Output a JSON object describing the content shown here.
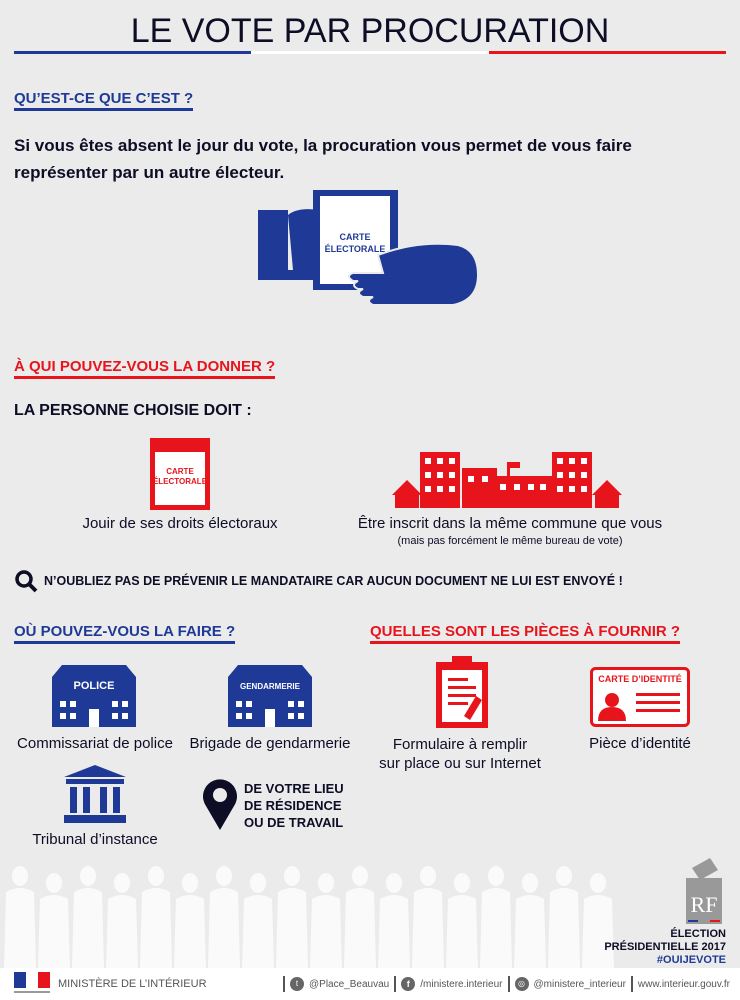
{
  "title": "LE VOTE PAR PROCURATION",
  "colors": {
    "blue": "#1e3a96",
    "red": "#e8141c",
    "background": "#ebebeb",
    "text": "#0d0d26"
  },
  "section1": {
    "heading": "QU’EST-CE QUE C’EST ?",
    "text_line1": "Si vous êtes absent le jour du vote, la procuration vous permet de vous faire",
    "text_line2": "représenter par un autre électeur.",
    "card_label_line1": "CARTE",
    "card_label_line2": "ÉLECTORALE"
  },
  "section2": {
    "heading": "À QUI POUVEZ-VOUS LA DONNER ?",
    "subheading": "LA PERSONNE CHOISIE DOIT :",
    "item1": {
      "card_line1": "CARTE",
      "card_line2": "ÉLECTORALE",
      "label": "Jouir de ses droits électoraux"
    },
    "item2": {
      "label": "Être inscrit dans la même commune que vous",
      "note": "(mais pas forcément le même bureau de vote)"
    }
  },
  "warning": "N’OUBLIEZ PAS DE PRÉVENIR LE MANDATAIRE CAR AUCUN DOCUMENT NE LUI EST ENVOYÉ !",
  "section3": {
    "heading": "OÙ POUVEZ-VOUS LA FAIRE ?",
    "police": {
      "sign": "POLICE",
      "label": "Commissariat de police"
    },
    "gendarmerie": {
      "sign": "GENDARMERIE",
      "label": "Brigade de gendarmerie"
    },
    "tribunal": {
      "label": "Tribunal d’instance"
    },
    "location": {
      "line1": "DE VOTRE LIEU",
      "line2": "DE RÉSIDENCE",
      "line3": "OU DE TRAVAIL"
    }
  },
  "section4": {
    "heading": "QUELLES SONT LES PIÈCES À FOURNIR ?",
    "form": {
      "label_line1": "Formulaire à remplir",
      "label_line2": "sur place ou sur Internet"
    },
    "id": {
      "card": "CARTE D’IDENTITÉ",
      "label": "Pièce d’identité"
    }
  },
  "badge": {
    "logo": "RF",
    "line1": "ÉLECTION",
    "line2": "PRÉSIDENTIELLE 2017",
    "hashtag": "#OUIJEVOTE"
  },
  "footer": {
    "ministry": "MINISTÈRE DE L’INTÉRIEUR",
    "twitter": "@Place_Beauvau",
    "facebook": "/ministere.interieur",
    "instagram": "@ministere_interieur",
    "website": "www.interieur.gouv.fr"
  }
}
